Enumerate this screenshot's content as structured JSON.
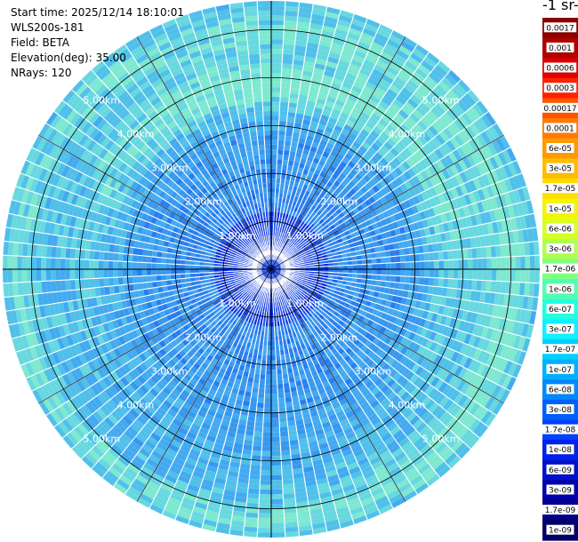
{
  "info": {
    "start_time": "Start time: 2025/12/14 18:10:01",
    "instrument": "WLS200s-181",
    "field": "Field: BETA",
    "elevation": "Elevation(deg): 35.00",
    "nrays": "NRays: 120"
  },
  "colorbar": {
    "title": "-1 sr-",
    "labels": [
      "0.0017",
      "0.001",
      "0.0006",
      "0.0003",
      "0.00017",
      "0.0001",
      "6e-05",
      "3e-05",
      "1.7e-05",
      "1e-05",
      "6e-06",
      "3e-06",
      "1.7e-06",
      "1e-06",
      "6e-07",
      "3e-07",
      "1.7e-07",
      "1e-07",
      "6e-08",
      "3e-08",
      "1.7e-08",
      "1e-08",
      "6e-09",
      "3e-09",
      "1.7e-09",
      "1e-09"
    ],
    "colors": [
      "#8b0000",
      "#b00000",
      "#dd0000",
      "#ff2000",
      "#ff5500",
      "#ff7a00",
      "#ff9900",
      "#ffbb00",
      "#ffdd00",
      "#f5f500",
      "#d8ff20",
      "#b0ff50",
      "#80ff80",
      "#50ffb0",
      "#20ffe0",
      "#10f0ff",
      "#00d0ff",
      "#00b0ff",
      "#0088ff",
      "#0060ff",
      "#0040ff",
      "#0020ee",
      "#0010cc",
      "#0000aa",
      "#000088",
      "#000066"
    ]
  },
  "chart_data": {
    "type": "heatmap",
    "projection": "polar (PPI)",
    "nrays": 120,
    "range_rings_km": [
      1,
      2,
      3,
      4,
      5
    ],
    "ring_labels": [
      "1.00km",
      "2.00km",
      "3.00km",
      "4.00km",
      "5.00km"
    ],
    "max_range_km": 5.6,
    "value_range": [
      1e-09,
      0.0017
    ],
    "scale": "log",
    "typical_value_range": [
      3e-08,
      3e-07
    ]
  }
}
